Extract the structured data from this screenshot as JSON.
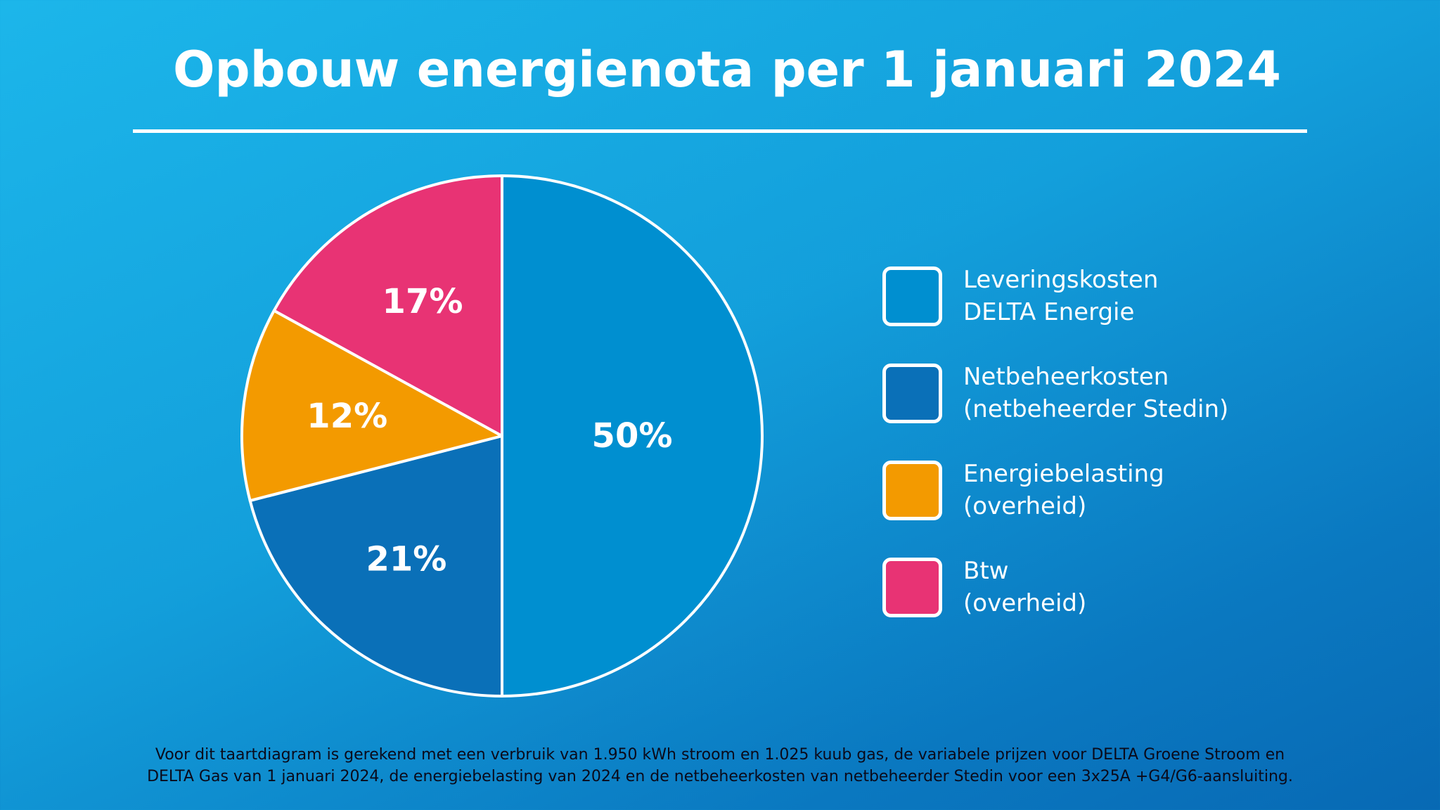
{
  "chart_data": {
    "type": "pie",
    "title": "Opbouw energienota per 1 januari 2024",
    "slices": [
      {
        "name": "Leveringskosten DELTA Energie",
        "label_lines": [
          "Leveringskosten",
          "DELTA Energie"
        ],
        "value": 50,
        "label": "50%",
        "color": "#008fd0"
      },
      {
        "name": "Netbeheerkosten (netbeheerder Stedin)",
        "label_lines": [
          "Netbeheerkosten",
          "(netbeheerder Stedin)"
        ],
        "value": 21,
        "label": "21%",
        "color": "#0a70b8"
      },
      {
        "name": "Energiebelasting (overheid)",
        "label_lines": [
          "Energiebelasting",
          "(overheid)"
        ],
        "value": 12,
        "label": "12%",
        "color": "#f39a00"
      },
      {
        "name": "Btw (overheid)",
        "label_lines": [
          "Btw",
          "(overheid)"
        ],
        "value": 17,
        "label": "17%",
        "color": "#e83374"
      }
    ],
    "start": "top",
    "direction": "clockwise",
    "legend_placement": "right"
  },
  "footnote": {
    "line1": "Voor dit taartdiagram is gerekend met een verbruik van 1.950 kWh stroom en 1.025 kuub gas, de variabele prijzen voor DELTA Groene Stroom en",
    "line2": "DELTA Gas van 1 januari 2024, de energiebelasting van 2024 en de netbeheerkosten van netbeheerder Stedin voor een 3x25A +G4/G6-aansluiting."
  }
}
